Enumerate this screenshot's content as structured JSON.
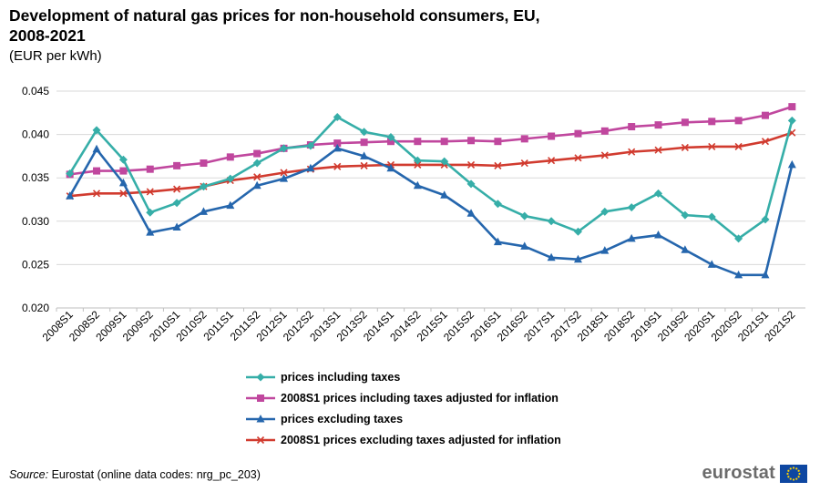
{
  "title_line1": "Development of natural gas prices for non-household consumers, EU,",
  "title_line2": "2008-2021",
  "unit": "(EUR per kWh)",
  "source_label": "Source:",
  "source_text": " Eurostat (online data codes: nrg_pc_203)",
  "logo_text": "eurostat",
  "colors": {
    "teal": "#36aea8",
    "magenta": "#c0479e",
    "blue": "#2566ad",
    "red": "#d13b2f",
    "grid": "#d9d9d9",
    "logo_blue": "#0e47a1",
    "logo_star": "#ffd200"
  },
  "chart_data": {
    "type": "line",
    "title": "Development of natural gas prices for non-household consumers, EU, 2008-2021",
    "ylabel": "",
    "ylim": [
      0.02,
      0.045
    ],
    "yticks": [
      "0.020",
      "0.025",
      "0.030",
      "0.035",
      "0.040",
      "0.045"
    ],
    "grid": true,
    "legend_position": "bottom",
    "categories": [
      "2008S1",
      "2008S2",
      "2009S1",
      "2009S2",
      "2010S1",
      "2010S2",
      "2011S1",
      "2011S2",
      "2012S1",
      "2012S2",
      "2013S1",
      "2013S2",
      "2014S1",
      "2014S2",
      "2015S1",
      "2015S2",
      "2016S1",
      "2016S2",
      "2017S1",
      "2017S2",
      "2018S1",
      "2018S2",
      "2019S1",
      "2019S2",
      "2020S1",
      "2020S2",
      "2021S1",
      "2021S2"
    ],
    "series": [
      {
        "name": "prices including taxes",
        "color": "#36aea8",
        "marker": "diamond",
        "values": [
          0.0355,
          0.0405,
          0.0371,
          0.031,
          0.0321,
          0.034,
          0.0349,
          0.0367,
          0.0384,
          0.0387,
          0.042,
          0.0403,
          0.0397,
          0.037,
          0.0369,
          0.0343,
          0.032,
          0.0306,
          0.03,
          0.0288,
          0.0311,
          0.0316,
          0.0332,
          0.0307,
          0.0305,
          0.028,
          0.0302,
          0.0416
        ]
      },
      {
        "name": "2008S1 prices including taxes adjusted for inflation",
        "color": "#c0479e",
        "marker": "square",
        "values": [
          0.0354,
          0.0358,
          0.0358,
          0.036,
          0.0364,
          0.0367,
          0.0374,
          0.0378,
          0.0384,
          0.0388,
          0.039,
          0.0391,
          0.0392,
          0.0392,
          0.0392,
          0.0393,
          0.0392,
          0.0395,
          0.0398,
          0.0401,
          0.0404,
          0.0409,
          0.0411,
          0.0414,
          0.0415,
          0.0416,
          0.0422,
          0.0432
        ]
      },
      {
        "name": "prices excluding taxes",
        "color": "#2566ad",
        "marker": "triangle",
        "values": [
          0.0329,
          0.0383,
          0.0344,
          0.0287,
          0.0293,
          0.0311,
          0.0318,
          0.0341,
          0.0349,
          0.0361,
          0.0384,
          0.0375,
          0.0361,
          0.0341,
          0.033,
          0.0309,
          0.0276,
          0.0271,
          0.0258,
          0.0256,
          0.0266,
          0.028,
          0.0284,
          0.0267,
          0.025,
          0.0238,
          0.0238,
          0.0365
        ]
      },
      {
        "name": "2008S1 prices excluding taxes adjusted for inflation",
        "color": "#d13b2f",
        "marker": "cross",
        "values": [
          0.0329,
          0.0332,
          0.0332,
          0.0334,
          0.0337,
          0.034,
          0.0347,
          0.0351,
          0.0356,
          0.036,
          0.0363,
          0.0364,
          0.0365,
          0.0365,
          0.0365,
          0.0365,
          0.0364,
          0.0367,
          0.037,
          0.0373,
          0.0376,
          0.038,
          0.0382,
          0.0385,
          0.0386,
          0.0386,
          0.0392,
          0.0402
        ]
      }
    ]
  }
}
